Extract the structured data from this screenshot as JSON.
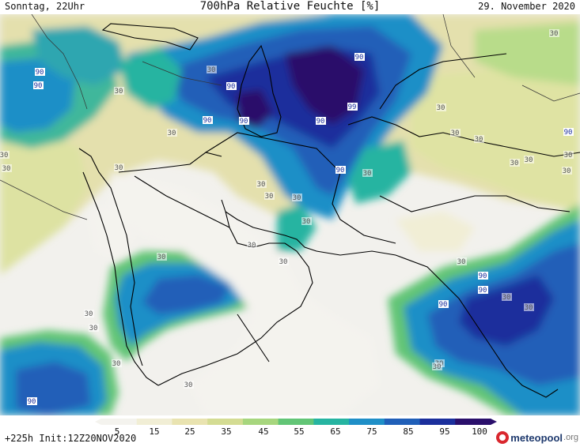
{
  "header": {
    "left": "Sonntag, 22Uhr",
    "title": "700hPa Relative Feuchte [%]",
    "right": "29. November 2020"
  },
  "footer": {
    "run_info": "+225h Init:12Z20NOV2020",
    "logo_name": "meteopool",
    "logo_suffix": ".org"
  },
  "colorbar": {
    "ticks": [
      "5",
      "15",
      "25",
      "35",
      "45",
      "55",
      "65",
      "75",
      "85",
      "95",
      "100"
    ],
    "colors": [
      "#f4f3ee",
      "#f1eed5",
      "#e9e3b0",
      "#d4dc93",
      "#a7d67e",
      "#62c576",
      "#26b4a1",
      "#1f8fc7",
      "#205fb8",
      "#1b2f9c",
      "#2a0f6b"
    ]
  },
  "map_labels": [
    {
      "text": "90",
      "level": "high"
    },
    {
      "text": "90",
      "level": "high"
    },
    {
      "text": "30",
      "level": "low"
    },
    {
      "text": "30",
      "level": "low"
    },
    {
      "text": "30",
      "level": "low"
    },
    {
      "text": "90",
      "level": "high"
    },
    {
      "text": "30",
      "level": "low"
    },
    {
      "text": "30",
      "level": "low"
    },
    {
      "text": "30",
      "level": "low"
    },
    {
      "text": "90",
      "level": "high"
    },
    {
      "text": "90",
      "level": "high"
    },
    {
      "text": "30",
      "level": "low"
    },
    {
      "text": "30",
      "level": "low"
    },
    {
      "text": "30",
      "level": "low"
    },
    {
      "text": "30",
      "level": "low"
    },
    {
      "text": "30",
      "level": "low"
    },
    {
      "text": "90",
      "level": "high"
    },
    {
      "text": "30",
      "level": "low"
    },
    {
      "text": "90",
      "level": "high"
    },
    {
      "text": "99",
      "level": "high"
    },
    {
      "text": "30",
      "level": "low"
    },
    {
      "text": "30",
      "level": "low"
    },
    {
      "text": "30",
      "level": "low"
    },
    {
      "text": "30",
      "level": "low"
    },
    {
      "text": "30",
      "level": "low"
    },
    {
      "text": "90",
      "level": "high"
    },
    {
      "text": "30",
      "level": "low"
    },
    {
      "text": "90",
      "level": "high"
    },
    {
      "text": "90",
      "level": "high"
    },
    {
      "text": "30",
      "level": "low"
    },
    {
      "text": "30",
      "level": "low"
    },
    {
      "text": "30",
      "level": "low"
    },
    {
      "text": "30",
      "level": "low"
    },
    {
      "text": "30",
      "level": "low"
    },
    {
      "text": "30",
      "level": "low"
    },
    {
      "text": "30",
      "level": "low"
    },
    {
      "text": "90",
      "level": "high"
    },
    {
      "text": "90",
      "level": "high"
    },
    {
      "text": "90",
      "level": "high"
    },
    {
      "text": "30",
      "level": "low"
    },
    {
      "text": "30",
      "level": "low"
    },
    {
      "text": "30",
      "level": "low"
    },
    {
      "text": "30",
      "level": "low"
    },
    {
      "text": "30",
      "level": "low"
    },
    {
      "text": "30",
      "level": "low"
    }
  ]
}
